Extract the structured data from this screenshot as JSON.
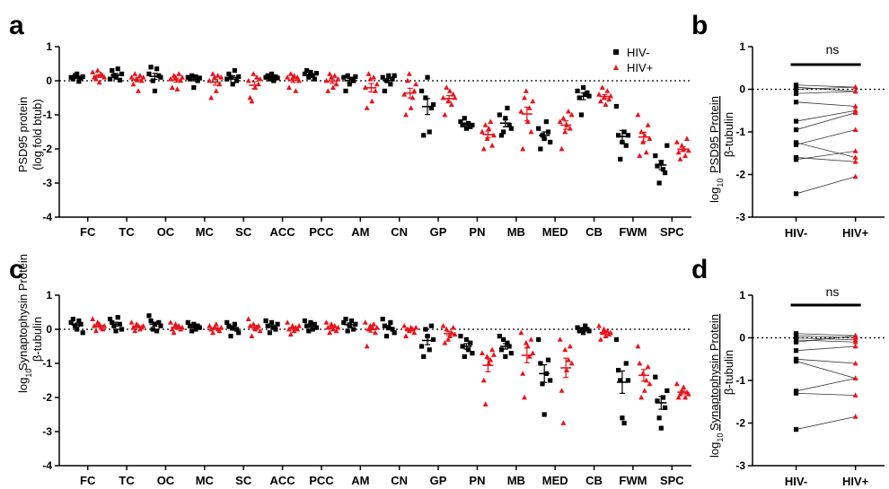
{
  "panels": {
    "a": "a",
    "b": "b",
    "c": "c",
    "d": "d"
  },
  "legend": {
    "hiv_neg": "HIV-",
    "hiv_pos": "HIV+"
  },
  "colors": {
    "hiv_neg": "#000000",
    "hiv_pos": "#e8141b"
  },
  "ylabels": {
    "a_line1": "PSD95 protein",
    "a_line2": "(log fold btub)",
    "b_main": "PSD95 Protein",
    "b_sub": "β-tubulin",
    "c_main": "Synaptophysin Protein",
    "c_sub": "β-tubulin",
    "d_main": "Synaptophysin Protein",
    "d_sub": "β-tubulin",
    "log_prefix": "log",
    "log_sub": "10"
  },
  "ns_label": "ns",
  "chart_data": [
    {
      "id": "a",
      "type": "scatter",
      "ylim": [
        -4,
        1
      ],
      "yticks": [
        1,
        0,
        -1,
        -2,
        -3,
        -4
      ],
      "categories": [
        "FC",
        "TC",
        "OC",
        "MC",
        "SC",
        "ACC",
        "PCC",
        "AM",
        "CN",
        "GP",
        "PN",
        "MB",
        "MED",
        "CB",
        "FWM",
        "SPC"
      ],
      "series": [
        {
          "name": "HIV-",
          "marker": "square",
          "values": [
            [
              0.1,
              0.05,
              0.15,
              0.2,
              -0.02,
              0.08,
              0.12
            ],
            [
              0.05,
              0.3,
              0.15,
              0.1,
              0.35,
              0.02,
              0.2
            ],
            [
              0.2,
              0.4,
              0.0,
              -0.3,
              0.35,
              0.15,
              0.1
            ],
            [
              0.1,
              0.05,
              0.15,
              -0.2,
              0.12,
              0.0,
              0.08
            ],
            [
              0.05,
              0.2,
              0.1,
              -0.1,
              0.3,
              0.0,
              0.12
            ],
            [
              0.1,
              0.15,
              0.05,
              0.2,
              0.0,
              0.12,
              0.08
            ],
            [
              0.2,
              0.3,
              0.1,
              0.25,
              0.15,
              0.05,
              0.22
            ],
            [
              0.1,
              -0.3,
              0.15,
              -0.1,
              0.05,
              0.0,
              0.12
            ],
            [
              0.1,
              -0.3,
              0.0,
              0.15,
              -0.1,
              0.05,
              0.15
            ],
            [
              -0.3,
              -1.6,
              -0.5,
              0.1,
              -1.5,
              -0.8,
              -0.7
            ],
            [
              -1.2,
              -1.3,
              -1.1,
              -1.4,
              -1.25,
              -1.35,
              -1.3
            ],
            [
              -1.0,
              -1.6,
              -1.5,
              -1.1,
              -0.8,
              -1.3,
              -1.4
            ],
            [
              -1.4,
              -2.0,
              -1.6,
              -1.7,
              -1.2,
              -1.5,
              -1.8
            ],
            [
              -0.3,
              -0.5,
              -1.0,
              -0.2,
              -0.4,
              -0.35,
              -0.45
            ],
            [
              -0.75,
              -1.6,
              -2.3,
              -1.8,
              -1.5,
              -1.9,
              -1.6
            ],
            [
              -2.2,
              -2.5,
              -3.0,
              -2.4,
              -2.6,
              -2.7,
              -1.9
            ]
          ]
        },
        {
          "name": "HIV+",
          "marker": "triangle",
          "values": [
            [
              0.25,
              0.1,
              0.05,
              0.3,
              -0.05,
              0.2,
              0.15,
              0.1
            ],
            [
              0.1,
              -0.1,
              0.2,
              0.05,
              -0.3,
              0.15,
              0.0,
              0.1
            ],
            [
              0.05,
              -0.2,
              0.15,
              0.1,
              -0.25,
              0.2,
              0.0,
              0.1
            ],
            [
              0.0,
              -0.5,
              0.2,
              0.1,
              -0.3,
              0.15,
              -0.1,
              0.1
            ],
            [
              0.0,
              -0.5,
              -0.6,
              0.2,
              -0.2,
              0.1,
              -0.1,
              0.05
            ],
            [
              0.1,
              -0.2,
              0.2,
              0.05,
              0.15,
              -0.3,
              0.1,
              0.0
            ],
            [
              0.0,
              -0.3,
              0.2,
              0.1,
              -0.2,
              0.15,
              -0.1,
              0.05
            ],
            [
              -0.2,
              -0.8,
              0.2,
              0.05,
              -0.6,
              0.1,
              -0.3,
              -0.1
            ],
            [
              -0.4,
              -1.0,
              0.0,
              0.2,
              -0.8,
              -0.5,
              -0.3,
              -0.1
            ],
            [
              -0.5,
              -1.0,
              -0.2,
              -0.6,
              -0.3,
              -0.7,
              -0.4,
              -0.5
            ],
            [
              -1.5,
              -2.0,
              -1.3,
              -1.7,
              -1.4,
              -1.2,
              -1.9,
              -1.6
            ],
            [
              -0.9,
              -2.0,
              -0.5,
              -0.3,
              -1.2,
              -0.8,
              -1.5,
              -0.6
            ],
            [
              -1.2,
              -2.0,
              -1.1,
              -1.5,
              -1.3,
              -0.9,
              -1.4,
              -1.0
            ],
            [
              -0.4,
              -0.6,
              -0.2,
              -0.5,
              -0.7,
              -0.3,
              -0.55,
              -0.45
            ],
            [
              -1.0,
              -2.2,
              -1.5,
              -1.8,
              -1.6,
              -2.1,
              -1.3,
              -1.7
            ],
            [
              -1.8,
              -2.1,
              -2.3,
              -1.9,
              -2.0,
              -2.2,
              -1.7,
              -2.05
            ]
          ]
        }
      ]
    },
    {
      "id": "b",
      "type": "paired",
      "ylim": [
        -3,
        1
      ],
      "yticks": [
        1,
        0,
        -1,
        -2,
        -3
      ],
      "categories": [
        "HIV-",
        "HIV+"
      ],
      "pairs": [
        [
          0.1,
          0.05
        ],
        [
          0.05,
          -0.05
        ],
        [
          0.0,
          0.05
        ],
        [
          -0.1,
          -0.05
        ],
        [
          -0.3,
          -0.4
        ],
        [
          -0.75,
          -0.5
        ],
        [
          -0.95,
          -0.55
        ],
        [
          -1.3,
          -0.95
        ],
        [
          -1.6,
          -1.7
        ],
        [
          -1.65,
          -1.45
        ],
        [
          -1.25,
          -1.6
        ],
        [
          -2.45,
          -2.05
        ]
      ]
    },
    {
      "id": "c",
      "type": "scatter",
      "ylim": [
        -4,
        1
      ],
      "yticks": [
        1,
        0,
        -1,
        -2,
        -3,
        -4
      ],
      "categories": [
        "FC",
        "TC",
        "OC",
        "MC",
        "SC",
        "ACC",
        "PCC",
        "AM",
        "CN",
        "GP",
        "PN",
        "MB",
        "MED",
        "CB",
        "FWM",
        "SPC"
      ],
      "series": [
        {
          "name": "HIV-",
          "marker": "square",
          "values": [
            [
              0.2,
              0.3,
              0.1,
              0.0,
              0.25,
              0.15,
              -0.1
            ],
            [
              0.3,
              0.2,
              0.1,
              -0.05,
              0.35,
              0.15,
              0.0
            ],
            [
              0.4,
              0.25,
              0.0,
              0.15,
              -0.05,
              0.2,
              0.1
            ],
            [
              0.2,
              0.1,
              -0.05,
              0.15,
              0.0,
              0.1,
              0.05
            ],
            [
              0.2,
              0.1,
              -0.2,
              0.05,
              0.15,
              0.0,
              -0.1
            ],
            [
              0.25,
              0.1,
              -0.1,
              0.2,
              0.05,
              0.0,
              0.15
            ],
            [
              0.25,
              0.1,
              -0.05,
              0.2,
              0.0,
              0.15,
              0.05
            ],
            [
              0.2,
              0.3,
              -0.05,
              0.1,
              0.25,
              0.0,
              0.15
            ],
            [
              0.3,
              0.1,
              -0.2,
              0.05,
              0.2,
              0.0,
              -0.1
            ],
            [
              -0.5,
              -0.8,
              0.0,
              -0.2,
              -0.6,
              0.1,
              -0.3
            ],
            [
              -0.2,
              -0.5,
              -0.8,
              -0.3,
              -0.6,
              -0.4,
              -0.7
            ],
            [
              -0.2,
              -0.6,
              -0.3,
              -0.8,
              -0.4,
              -0.5,
              -0.7
            ],
            [
              -0.3,
              -1.0,
              -1.6,
              -2.5,
              -1.3,
              -0.9,
              -1.5
            ],
            [
              0.05,
              -0.05,
              0.0,
              -0.1,
              0.1,
              0.0,
              -0.05
            ],
            [
              -0.3,
              -1.2,
              -1.5,
              -2.6,
              -2.75,
              -1.0,
              -1.5
            ],
            [
              -1.4,
              -2.1,
              -2.6,
              -2.9,
              -2.0,
              -2.3,
              -1.8
            ]
          ]
        },
        {
          "name": "HIV+",
          "marker": "triangle",
          "values": [
            [
              0.3,
              0.1,
              -0.05,
              0.2,
              0.15,
              0.05,
              0.0,
              0.1
            ],
            [
              0.2,
              0.05,
              -0.05,
              0.15,
              0.1,
              0.0,
              0.05,
              0.1
            ],
            [
              0.2,
              0.0,
              -0.1,
              0.15,
              0.05,
              0.1,
              0.0,
              0.05
            ],
            [
              0.1,
              0.0,
              -0.1,
              0.05,
              0.15,
              0.0,
              -0.05,
              0.05
            ],
            [
              0.3,
              0.1,
              -0.2,
              0.15,
              0.0,
              0.05,
              0.1,
              -0.05
            ],
            [
              0.2,
              0.0,
              -0.15,
              0.1,
              -0.05,
              0.05,
              0.0,
              0.1
            ],
            [
              0.2,
              0.05,
              -0.1,
              0.15,
              0.0,
              0.1,
              -0.05,
              0.05
            ],
            [
              0.2,
              -0.5,
              0.0,
              0.1,
              0.05,
              0.15,
              -0.1,
              0.05
            ],
            [
              0.1,
              -0.2,
              0.0,
              -0.05,
              0.05,
              0.0,
              -0.1,
              0.05
            ],
            [
              0.1,
              -0.4,
              0.0,
              -0.3,
              -0.2,
              -0.1,
              0.05,
              -0.15
            ],
            [
              -0.7,
              -1.5,
              -2.2,
              -0.8,
              -1.0,
              -0.9,
              -0.6,
              -0.75
            ],
            [
              -0.1,
              -1.3,
              -2.0,
              -0.4,
              -0.5,
              -0.8,
              -0.3,
              -0.7
            ],
            [
              -0.3,
              -1.8,
              -2.75,
              -0.6,
              -1.2,
              -0.9,
              -0.5,
              -1.0
            ],
            [
              0.1,
              -0.3,
              -0.1,
              0.0,
              -0.2,
              -0.05,
              -0.15,
              -0.1
            ],
            [
              -0.5,
              -1.0,
              -2.0,
              -1.3,
              -1.8,
              -1.5,
              -1.1,
              -1.6
            ],
            [
              -1.6,
              -2.0,
              -1.9,
              -1.8,
              -1.7,
              -2.0,
              -1.85,
              -1.9
            ]
          ]
        }
      ]
    },
    {
      "id": "d",
      "type": "paired",
      "ylim": [
        -3,
        1
      ],
      "yticks": [
        1,
        0,
        -1,
        -2,
        -3
      ],
      "categories": [
        "HIV-",
        "HIV+"
      ],
      "pairs": [
        [
          0.1,
          0.05
        ],
        [
          0.05,
          0.0
        ],
        [
          0.0,
          -0.05
        ],
        [
          -0.1,
          0.05
        ],
        [
          -0.05,
          -0.1
        ],
        [
          -0.3,
          -0.2
        ],
        [
          -0.5,
          -0.6
        ],
        [
          -0.55,
          -0.95
        ],
        [
          -1.25,
          -0.95
        ],
        [
          -1.3,
          -1.35
        ],
        [
          -2.15,
          -1.85
        ]
      ]
    }
  ]
}
